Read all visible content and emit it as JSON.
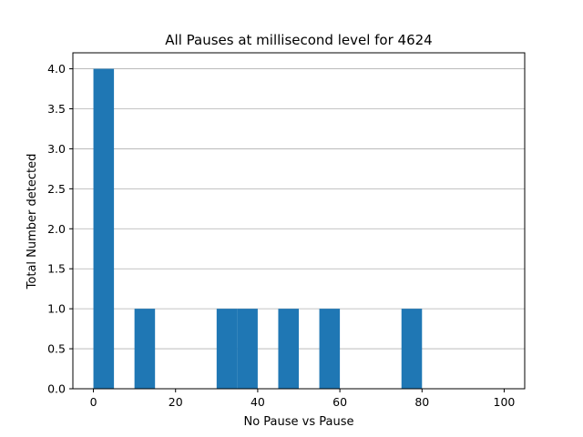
{
  "chart_data": {
    "type": "bar",
    "title": "All Pauses at millisecond level for 4624",
    "xlabel": "No Pause vs Pause",
    "ylabel": "Total Number detected",
    "xlim": [
      -5,
      105
    ],
    "ylim": [
      0,
      4.2
    ],
    "xticks": [
      0,
      20,
      40,
      60,
      80,
      100
    ],
    "xtick_labels": [
      "0",
      "20",
      "40",
      "60",
      "80",
      "100"
    ],
    "yticks": [
      0,
      0.5,
      1,
      1.5,
      2,
      2.5,
      3,
      3.5,
      4
    ],
    "ytick_labels": [
      "0.0",
      "0.5",
      "1.0",
      "1.5",
      "2.0",
      "2.5",
      "3.0",
      "3.5",
      "4.0"
    ],
    "grid": "horizontal",
    "bar_color": "#1f77b4",
    "bins": [
      {
        "x0": 0,
        "x1": 5,
        "count": 4
      },
      {
        "x0": 10,
        "x1": 15,
        "count": 1
      },
      {
        "x0": 30,
        "x1": 35,
        "count": 1
      },
      {
        "x0": 35,
        "x1": 40,
        "count": 1
      },
      {
        "x0": 45,
        "x1": 50,
        "count": 1
      },
      {
        "x0": 55,
        "x1": 60,
        "count": 1
      },
      {
        "x0": 75,
        "x1": 80,
        "count": 1
      }
    ]
  }
}
